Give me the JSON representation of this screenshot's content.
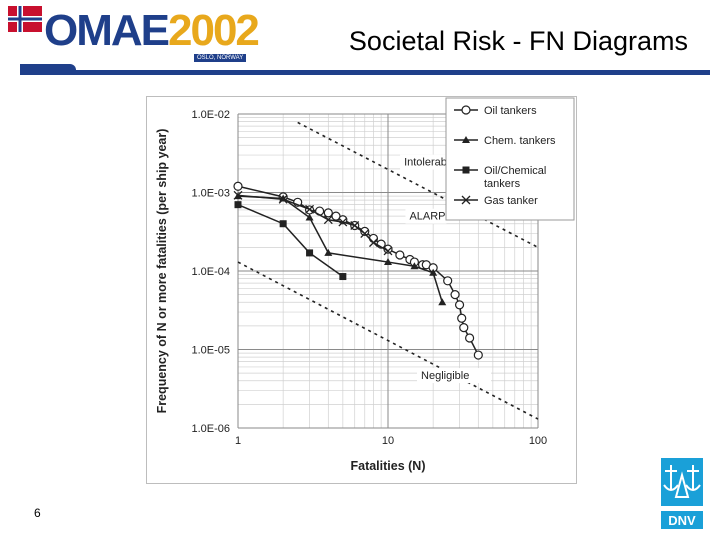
{
  "slide": {
    "title": "Societal Risk - FN Diagrams",
    "page_number": "6"
  },
  "logo": {
    "text": "OMAE2002",
    "subtext": "OSLO, NORWAY",
    "icon": "norway-flag-icon"
  },
  "brand": {
    "icon": "dnv-logo-icon",
    "text": "DNV",
    "color": "#1aa0d8"
  },
  "colors": {
    "accent": "#1f3f8a",
    "logo_yellow": "#e8a81c",
    "logo_blue": "#1f3f8a"
  },
  "chart_data": {
    "type": "line",
    "xscale": "log",
    "yscale": "log",
    "xlabel": "Fatalities (N)",
    "ylabel": "Frequency of N or more fatalities (per ship year)",
    "xlim": [
      1,
      100
    ],
    "ylim": [
      1e-06,
      0.01
    ],
    "x_ticks": [
      "1",
      "10",
      "100"
    ],
    "y_ticks": [
      "1.0E-02",
      "1.0E-03",
      "1.0E-04",
      "1.0E-05",
      "1.0E-06"
    ],
    "grid": true,
    "legend_position": "top-right",
    "series": [
      {
        "name": "Oil tankers",
        "marker": "circle",
        "x": [
          1,
          2,
          2.5,
          3,
          3.5,
          4,
          4.5,
          5,
          6,
          7,
          8,
          9,
          10,
          12,
          14,
          15,
          17,
          18,
          20,
          25,
          28,
          30,
          31,
          32,
          35,
          40
        ],
        "y": [
          0.0012,
          0.00088,
          0.00075,
          0.0006,
          0.00058,
          0.00055,
          0.0005,
          0.00045,
          0.00038,
          0.00032,
          0.00026,
          0.00022,
          0.00019,
          0.00016,
          0.00014,
          0.00013,
          0.00012,
          0.00012,
          0.00011,
          7.5e-05,
          5e-05,
          3.7e-05,
          2.5e-05,
          1.9e-05,
          1.4e-05,
          8.5e-06
        ]
      },
      {
        "name": "Chem. tankers",
        "marker": "triangle",
        "x": [
          1,
          2,
          3,
          4,
          10,
          15,
          20,
          23
        ],
        "y": [
          0.0009,
          0.00084,
          0.00048,
          0.00017,
          0.00013,
          0.000115,
          9.5e-05,
          4e-05
        ]
      },
      {
        "name": "Oil/Chemical tankers",
        "marker": "square",
        "x": [
          1,
          2,
          3,
          5
        ],
        "y": [
          0.0007,
          0.0004,
          0.00017,
          8.5e-05
        ]
      },
      {
        "name": "Gas tanker",
        "marker": "x",
        "x": [
          1,
          2,
          3,
          4,
          5,
          6,
          7,
          8,
          10
        ],
        "y": [
          0.00092,
          0.00082,
          0.00061,
          0.00045,
          0.00042,
          0.00038,
          0.0003,
          0.00023,
          0.00018
        ]
      }
    ],
    "reference_lines": [
      {
        "label": "Intolerable",
        "x": [
          2.5,
          100
        ],
        "y": [
          0.0078,
          0.0002
        ]
      },
      {
        "label": "Negligible",
        "x": [
          1,
          100
        ],
        "y": [
          0.00013,
          1.3e-06
        ]
      }
    ],
    "annotations": [
      "Intolerable",
      "ALARP",
      "Negligible"
    ]
  }
}
